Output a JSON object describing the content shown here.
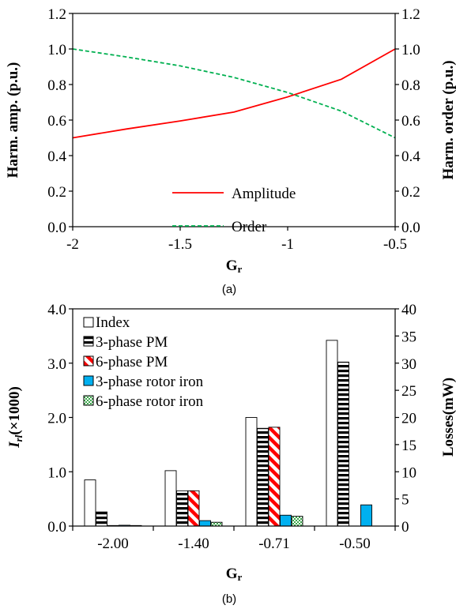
{
  "chart_data": [
    {
      "type": "line",
      "caption": "(a)",
      "xlabel": "Gr",
      "ylabel_left": "Harm. amp. (p.u.)",
      "ylabel_right": "Harm. order (p.u.)",
      "xlim": [
        -2,
        -0.5
      ],
      "ylim": [
        0,
        1.2
      ],
      "xticks": [
        "-2",
        "-1.5",
        "-1",
        "-0.5"
      ],
      "yticks": [
        "0.0",
        "0.2",
        "0.4",
        "0.6",
        "0.8",
        "1.0",
        "1.2"
      ],
      "grid": false,
      "legend_position": "bottom-center",
      "series": [
        {
          "name": "Amplitude",
          "color": "#ff0000",
          "style": "solid",
          "x": [
            -2.0,
            -1.75,
            -1.5,
            -1.25,
            -1.0,
            -0.75,
            -0.5
          ],
          "y": [
            0.5,
            0.55,
            0.595,
            0.645,
            0.73,
            0.83,
            1.0
          ]
        },
        {
          "name": "Order",
          "color": "#00b050",
          "style": "dashed",
          "x": [
            -2.0,
            -1.75,
            -1.5,
            -1.25,
            -1.0,
            -0.75,
            -0.5
          ],
          "y": [
            1.0,
            0.955,
            0.905,
            0.84,
            0.755,
            0.65,
            0.5
          ]
        }
      ]
    },
    {
      "type": "bar",
      "caption": "(b)",
      "xlabel": "Gr",
      "ylabel_left_main": "I",
      "ylabel_left_sub": "rl",
      "ylabel_left_rest": "(×1000)",
      "ylabel_right": "Losses(mW)",
      "categories": [
        "-2.00",
        "-1.40",
        "-0.71",
        "-0.50"
      ],
      "ylim_left": [
        0,
        4.0
      ],
      "ylim_right": [
        0,
        40
      ],
      "yticks_left": [
        "0.0",
        "1.0",
        "2.0",
        "3.0",
        "4.0"
      ],
      "yticks_right": [
        "0",
        "5",
        "10",
        "15",
        "20",
        "25",
        "30",
        "35",
        "40"
      ],
      "grid": false,
      "legend_position": "top-left",
      "series": [
        {
          "name": "Index",
          "axis": "left",
          "pattern": "white",
          "values": [
            0.85,
            1.02,
            2.0,
            3.42
          ]
        },
        {
          "name": "3-phase PM",
          "axis": "right",
          "pattern": "hstripe",
          "values": [
            2.6,
            6.5,
            18.0,
            30.2
          ]
        },
        {
          "name": "6-phase PM",
          "axis": "right",
          "pattern": "diagonal",
          "values": [
            0.1,
            6.5,
            18.2,
            0
          ]
        },
        {
          "name": "3-phase rotor iron",
          "axis": "right",
          "pattern": "blue",
          "color": "#00b0f0",
          "values": [
            0.15,
            1.0,
            2.0,
            3.9
          ]
        },
        {
          "name": "6-phase rotor iron",
          "axis": "right",
          "pattern": "checker",
          "color": "#92d050",
          "values": [
            0.1,
            0.7,
            1.8,
            0
          ]
        }
      ]
    }
  ]
}
